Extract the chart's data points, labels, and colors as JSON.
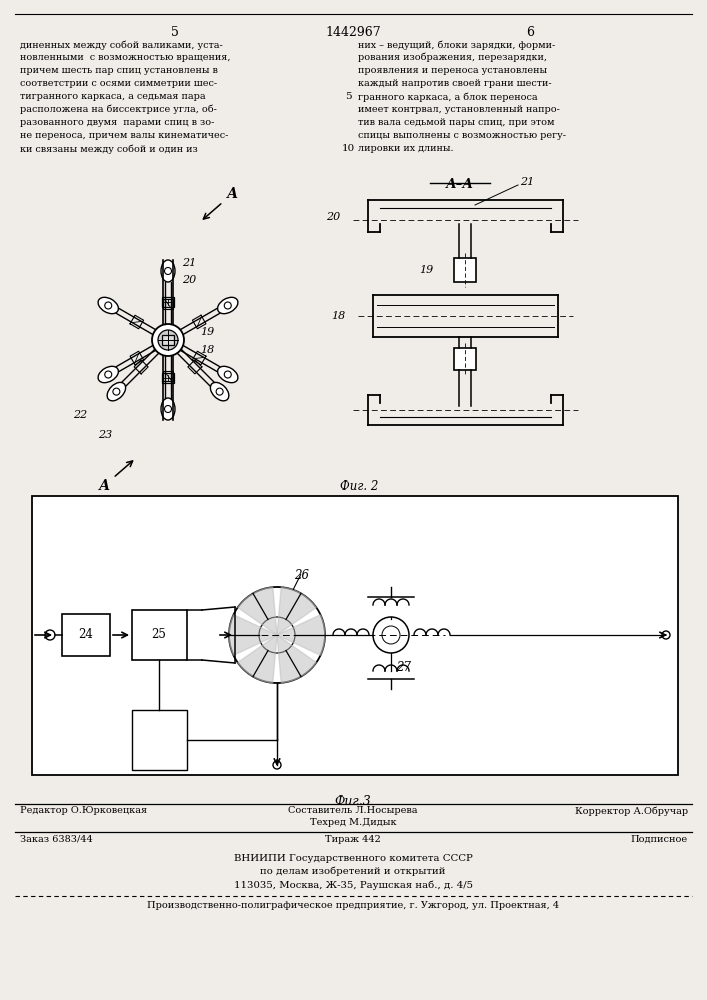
{
  "page_color": "#f0ede8",
  "patent_number": "1442967",
  "page_left": "5",
  "page_right": "6",
  "text_col1_lines": [
    "диненных между собой валиками, уста-",
    "новленными  с возможностью вращения,",
    "причем шесть пар спиц установлены в",
    "соответстрии с осями симметрии шес-",
    "тигранного каркаса, а седьмая пара",
    "расположена на биссектрисе угла, об-",
    "разованного двумя  парами спиц в зо-",
    "не переноса, причем валы кинематичес-",
    "ки связаны между собой и один из"
  ],
  "text_col2_lines": [
    "них – ведущий, блоки зарядки, форми-",
    "рования изображения, перезарядки,",
    "проявления и переноса установлены",
    "каждый напротив своей грани шести-",
    "гранного каркаса, а блок переноса",
    "имеет контрвал, установленный напро-",
    "тив вала седьмой пары спиц, при этом",
    "спицы выполнены с возможностью регу-",
    "лировки их длины."
  ],
  "fig2_label": "Фиг. 2",
  "fig3_label": "Фиг.3",
  "footer_editor": "Редактор О.Юрковецкая",
  "footer_comp": "Составитель Л.Носырева",
  "footer_tech": "Техред М.Дидык",
  "footer_corr": "Корректор А.Обручар",
  "footer_zakaz": "Заказ 6383/44",
  "footer_tiraz": "Тираж 442",
  "footer_podp": "Подписное",
  "footer_vn1": "ВНИИПИ Государственного комитета СССР",
  "footer_vn2": "по делам изобретений и открытий",
  "footer_vn3": "113035, Москва, Ж-35, Раушская наб., д. 4/5",
  "footer_pr": "Производственно-полиграфическое предприятие, г. Ужгород, ул. Проектная, 4"
}
